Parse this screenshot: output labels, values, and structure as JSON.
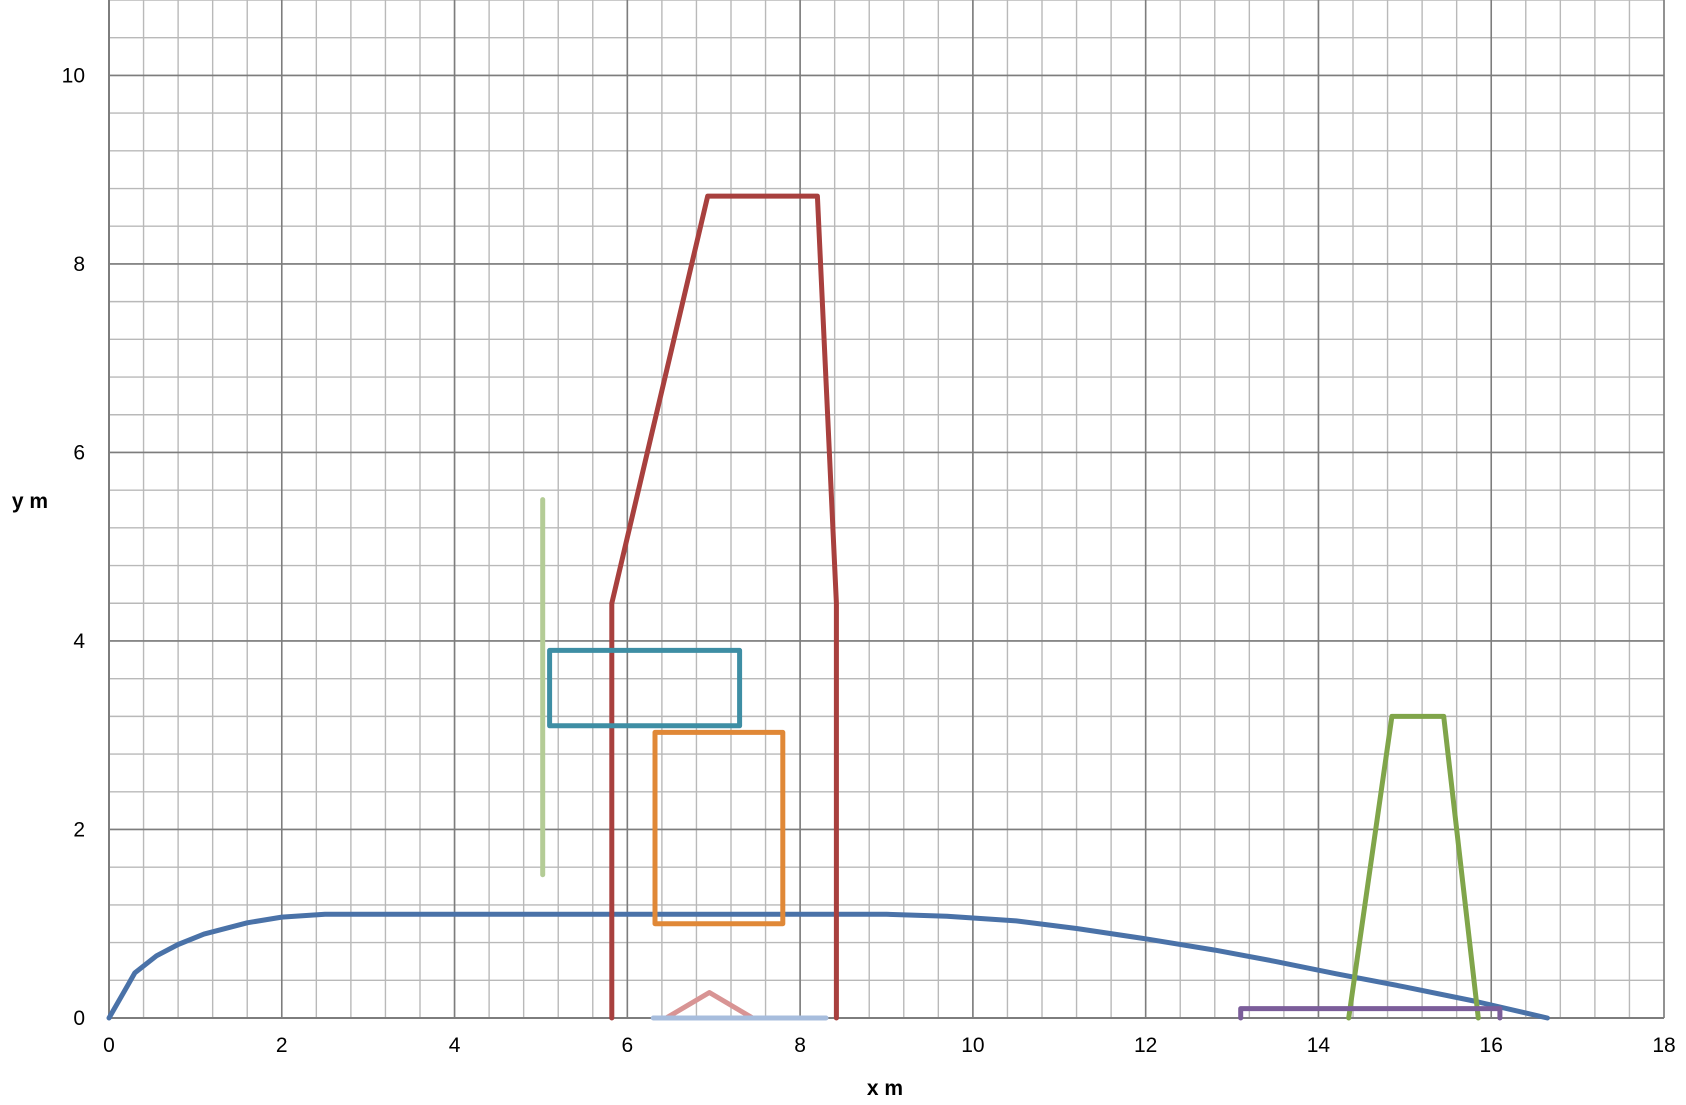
{
  "chart_data": {
    "type": "line",
    "xlabel": "x m",
    "ylabel": "y m",
    "xlim": [
      0,
      18
    ],
    "ylim": [
      0,
      10.8
    ],
    "x_ticks": [
      0,
      2,
      4,
      6,
      8,
      10,
      12,
      14,
      16,
      18
    ],
    "y_ticks": [
      0,
      2,
      4,
      6,
      8,
      10
    ],
    "grid": true,
    "legend": "none",
    "series": [
      {
        "color": "#4a72a8",
        "points": [
          [
            0,
            0
          ],
          [
            0.3,
            0.48
          ],
          [
            0.55,
            0.66
          ],
          [
            0.8,
            0.78
          ],
          [
            1.1,
            0.89
          ],
          [
            1.6,
            1.01
          ],
          [
            2.0,
            1.07
          ],
          [
            2.5,
            1.1
          ],
          [
            9.0,
            1.1
          ],
          [
            9.7,
            1.08
          ],
          [
            10.5,
            1.03
          ],
          [
            11.2,
            0.95
          ],
          [
            12.0,
            0.84
          ],
          [
            12.8,
            0.72
          ],
          [
            13.5,
            0.6
          ],
          [
            14.2,
            0.47
          ],
          [
            15.0,
            0.33
          ],
          [
            15.8,
            0.18
          ],
          [
            16.65,
            0.0
          ]
        ]
      },
      {
        "color": "#a8403e",
        "points": [
          [
            5.82,
            0
          ],
          [
            5.82,
            4.4
          ],
          [
            6.93,
            8.72
          ],
          [
            8.2,
            8.72
          ],
          [
            8.42,
            4.4
          ],
          [
            8.42,
            0
          ]
        ]
      },
      {
        "color": "#3e8ea4",
        "points": [
          [
            5.1,
            3.1
          ],
          [
            5.1,
            3.9
          ],
          [
            7.3,
            3.9
          ],
          [
            7.3,
            3.1
          ],
          [
            5.1,
            3.1
          ]
        ]
      },
      {
        "color": "#e08837",
        "points": [
          [
            6.32,
            1.0
          ],
          [
            6.32,
            3.03
          ],
          [
            7.8,
            3.03
          ],
          [
            7.8,
            1.0
          ],
          [
            6.32,
            1.0
          ]
        ]
      },
      {
        "color": "#b4cc96",
        "points": [
          [
            5.02,
            1.52
          ],
          [
            5.02,
            5.5
          ]
        ]
      },
      {
        "color": "#80a54a",
        "points": [
          [
            14.35,
            0
          ],
          [
            14.85,
            3.2
          ],
          [
            15.45,
            3.2
          ],
          [
            15.85,
            0
          ]
        ]
      },
      {
        "color": "#7b5d9a",
        "points": [
          [
            13.1,
            0
          ],
          [
            13.1,
            0.1
          ],
          [
            16.1,
            0.1
          ],
          [
            16.1,
            0
          ]
        ]
      },
      {
        "color": "#d89494",
        "points": [
          [
            6.45,
            0
          ],
          [
            6.95,
            0.27
          ],
          [
            7.45,
            0
          ]
        ]
      },
      {
        "color": "#a7bddd",
        "points": [
          [
            6.3,
            0
          ],
          [
            8.3,
            0
          ]
        ]
      }
    ]
  }
}
